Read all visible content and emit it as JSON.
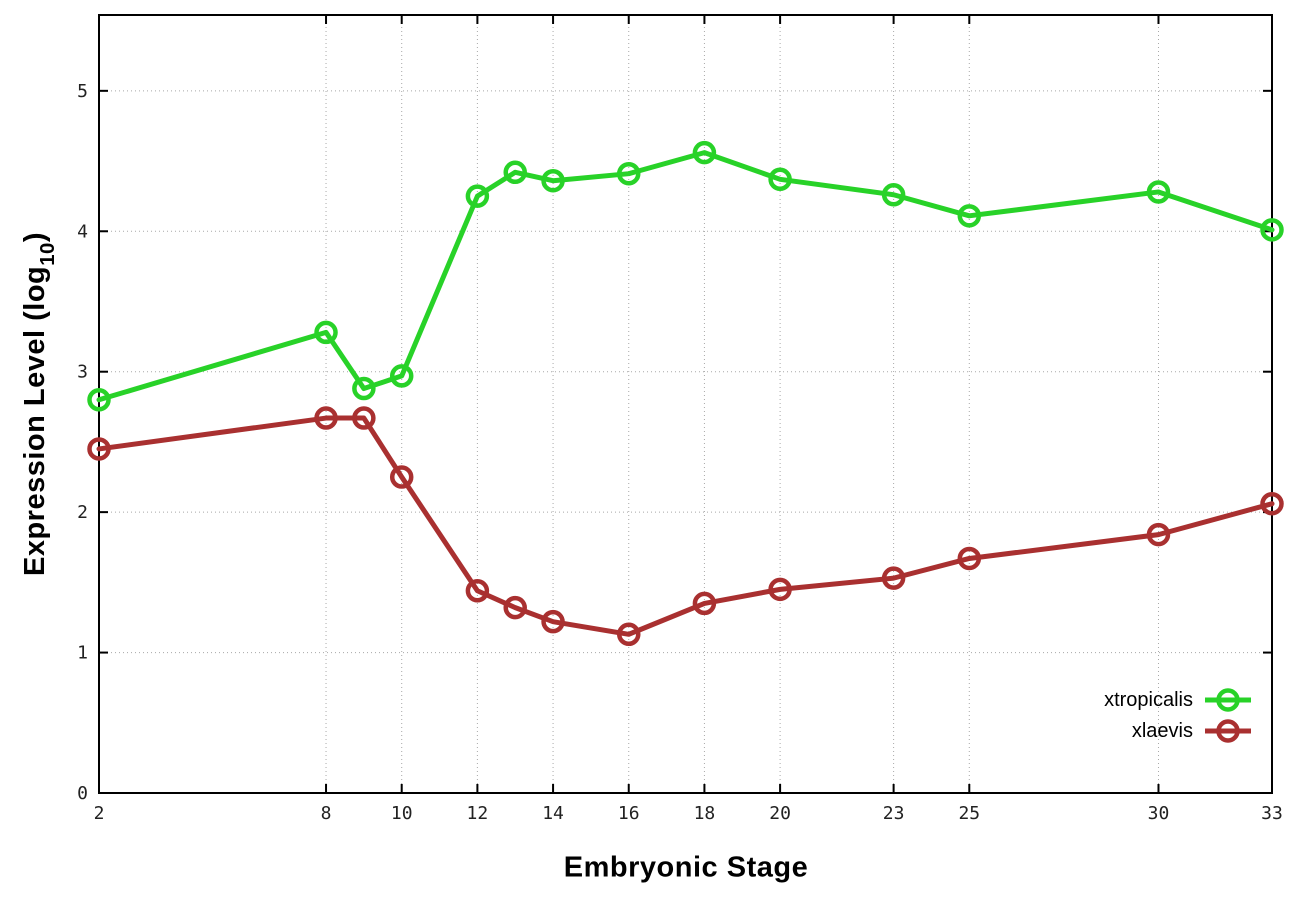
{
  "chart_data": {
    "type": "line",
    "title": "",
    "xlabel": "Embryonic Stage",
    "ylabel_prefix": "Expression Level (log",
    "ylabel_sub": "10",
    "ylabel_suffix": ")",
    "x": [
      2,
      8,
      9,
      10,
      12,
      13,
      14,
      16,
      18,
      20,
      23,
      25,
      30,
      33
    ],
    "x_ticks": [
      2,
      8,
      10,
      12,
      14,
      16,
      18,
      20,
      23,
      25,
      30,
      33
    ],
    "y_ticks": [
      0,
      1,
      2,
      3,
      4,
      5
    ],
    "xlim": [
      2,
      33
    ],
    "ylim": [
      0,
      5.54
    ],
    "grid": "dotted",
    "legend_position": "bottom-right-inside",
    "series": [
      {
        "name": "xtropicalis",
        "color": "#28d228",
        "values": [
          2.8,
          3.28,
          2.88,
          2.97,
          4.25,
          4.42,
          4.36,
          4.41,
          4.56,
          4.37,
          4.26,
          4.11,
          4.28,
          4.01
        ]
      },
      {
        "name": "xlaevis",
        "color": "#a93030",
        "values": [
          2.45,
          2.67,
          2.67,
          2.25,
          1.44,
          1.32,
          1.22,
          1.13,
          1.35,
          1.45,
          1.53,
          1.67,
          1.84,
          2.06
        ]
      }
    ]
  }
}
